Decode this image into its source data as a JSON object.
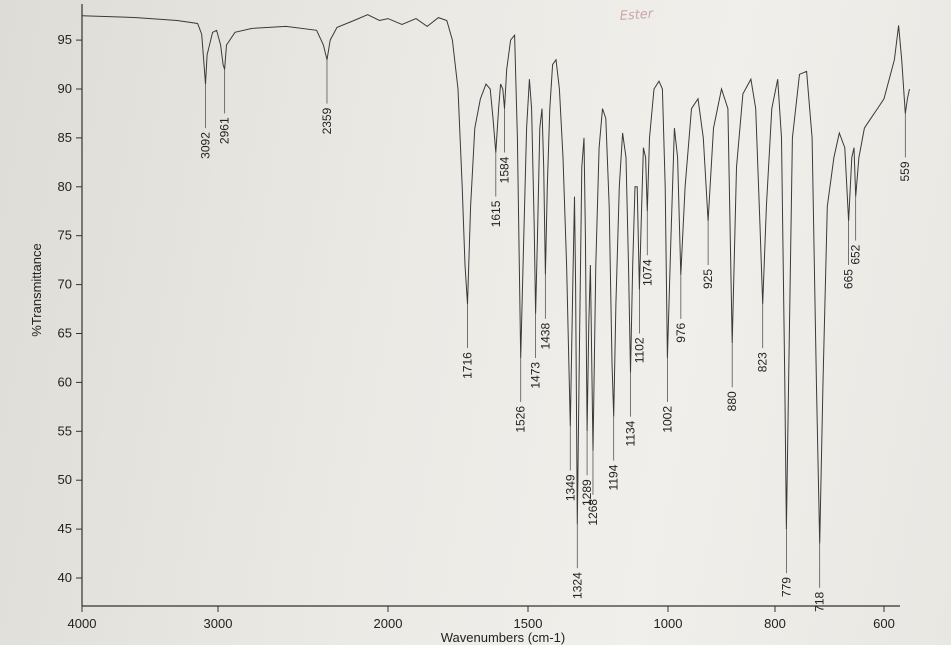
{
  "chart_data": {
    "type": "line",
    "title": "",
    "xlabel": "Wavenumbers (cm-1)",
    "ylabel": "%Transmittance",
    "annotation": "Ester",
    "xlim": [
      4000,
      550
    ],
    "ylim": [
      38,
      98
    ],
    "grid": false,
    "x_ticks": [
      {
        "value": 4000,
        "label": "4000"
      },
      {
        "value": 3000,
        "label": "3000"
      },
      {
        "value": 2000,
        "label": "2000"
      },
      {
        "value": 1500,
        "label": "1500"
      },
      {
        "value": 1000,
        "label": "1000"
      },
      {
        "value": 800,
        "label": "800"
      },
      {
        "value": 600,
        "label": "600"
      }
    ],
    "y_ticks": [
      {
        "value": 95,
        "label": "95"
      },
      {
        "value": 90,
        "label": "90"
      },
      {
        "value": 85,
        "label": "85"
      },
      {
        "value": 80,
        "label": "80"
      },
      {
        "value": 75,
        "label": "75"
      },
      {
        "value": 70,
        "label": "70"
      },
      {
        "value": 65,
        "label": "65"
      },
      {
        "value": 60,
        "label": "60"
      },
      {
        "value": 55,
        "label": "55"
      },
      {
        "value": 50,
        "label": "50"
      },
      {
        "value": 45,
        "label": "45"
      },
      {
        "value": 40,
        "label": "40"
      }
    ],
    "peaks": [
      {
        "x": 3092,
        "y": 90.5,
        "label": "3092"
      },
      {
        "x": 2961,
        "y": 92,
        "label": "2961"
      },
      {
        "x": 2359,
        "y": 93,
        "label": "2359"
      },
      {
        "x": 1716,
        "y": 68,
        "label": "1716"
      },
      {
        "x": 1615,
        "y": 83.5,
        "label": "1615"
      },
      {
        "x": 1584,
        "y": 88,
        "label": "1584"
      },
      {
        "x": 1526,
        "y": 62.5,
        "label": "1526"
      },
      {
        "x": 1473,
        "y": 67,
        "label": "1473"
      },
      {
        "x": 1438,
        "y": 71,
        "label": "1438"
      },
      {
        "x": 1349,
        "y": 55.5,
        "label": "1349"
      },
      {
        "x": 1324,
        "y": 45.5,
        "label": "1324"
      },
      {
        "x": 1289,
        "y": 55,
        "label": "1289"
      },
      {
        "x": 1268,
        "y": 53,
        "label": "1268"
      },
      {
        "x": 1194,
        "y": 56.5,
        "label": "1194"
      },
      {
        "x": 1134,
        "y": 61,
        "label": "1134"
      },
      {
        "x": 1102,
        "y": 69.5,
        "label": "1102"
      },
      {
        "x": 1074,
        "y": 77.5,
        "label": "1074"
      },
      {
        "x": 1002,
        "y": 62.5,
        "label": "1002"
      },
      {
        "x": 976,
        "y": 71,
        "label": "976"
      },
      {
        "x": 925,
        "y": 76.5,
        "label": "925"
      },
      {
        "x": 880,
        "y": 64,
        "label": "880"
      },
      {
        "x": 823,
        "y": 68,
        "label": "823"
      },
      {
        "x": 779,
        "y": 45,
        "label": "779"
      },
      {
        "x": 718,
        "y": 43.5,
        "label": "718"
      },
      {
        "x": 665,
        "y": 76.5,
        "label": "665"
      },
      {
        "x": 652,
        "y": 79,
        "label": "652"
      },
      {
        "x": 559,
        "y": 87.5,
        "label": "559"
      }
    ],
    "spectrum": [
      [
        4000,
        97.5
      ],
      [
        3600,
        97.3
      ],
      [
        3300,
        97.0
      ],
      [
        3150,
        96.7
      ],
      [
        3120,
        95.6
      ],
      [
        3100,
        92.0
      ],
      [
        3092,
        90.5
      ],
      [
        3080,
        93.5
      ],
      [
        3040,
        95.8
      ],
      [
        3010,
        96.0
      ],
      [
        2985,
        94.5
      ],
      [
        2970,
        92.5
      ],
      [
        2961,
        92.0
      ],
      [
        2950,
        94.5
      ],
      [
        2900,
        95.8
      ],
      [
        2800,
        96.2
      ],
      [
        2600,
        96.4
      ],
      [
        2420,
        96.0
      ],
      [
        2380,
        94.5
      ],
      [
        2359,
        93.0
      ],
      [
        2340,
        95.0
      ],
      [
        2300,
        96.3
      ],
      [
        2200,
        97.0
      ],
      [
        2120,
        97.6
      ],
      [
        2050,
        97.0
      ],
      [
        2000,
        97.2
      ],
      [
        1950,
        96.6
      ],
      [
        1900,
        97.2
      ],
      [
        1860,
        96.4
      ],
      [
        1820,
        97.3
      ],
      [
        1790,
        97.0
      ],
      [
        1770,
        95.0
      ],
      [
        1750,
        90.0
      ],
      [
        1735,
        80.0
      ],
      [
        1725,
        72.0
      ],
      [
        1716,
        68.0
      ],
      [
        1705,
        78.0
      ],
      [
        1690,
        86.0
      ],
      [
        1670,
        89.0
      ],
      [
        1650,
        90.5
      ],
      [
        1635,
        90.0
      ],
      [
        1625,
        87.0
      ],
      [
        1615,
        83.5
      ],
      [
        1605,
        88.0
      ],
      [
        1598,
        90.5
      ],
      [
        1590,
        90.0
      ],
      [
        1584,
        88.0
      ],
      [
        1576,
        92.0
      ],
      [
        1562,
        95.0
      ],
      [
        1548,
        95.5
      ],
      [
        1538,
        85.0
      ],
      [
        1526,
        62.5
      ],
      [
        1515,
        75.0
      ],
      [
        1505,
        86.0
      ],
      [
        1495,
        91.0
      ],
      [
        1487,
        88.0
      ],
      [
        1478,
        76.0
      ],
      [
        1473,
        67.0
      ],
      [
        1466,
        75.0
      ],
      [
        1458,
        86.0
      ],
      [
        1450,
        88.0
      ],
      [
        1444,
        82.0
      ],
      [
        1438,
        71.0
      ],
      [
        1431,
        80.0
      ],
      [
        1422,
        88.0
      ],
      [
        1412,
        92.5
      ],
      [
        1400,
        93.0
      ],
      [
        1388,
        90.0
      ],
      [
        1375,
        83.0
      ],
      [
        1362,
        72.0
      ],
      [
        1349,
        55.5
      ],
      [
        1340,
        70.0
      ],
      [
        1334,
        79.0
      ],
      [
        1330,
        70.0
      ],
      [
        1324,
        45.5
      ],
      [
        1316,
        64.0
      ],
      [
        1308,
        82.0
      ],
      [
        1300,
        85.0
      ],
      [
        1295,
        75.0
      ],
      [
        1289,
        55.0
      ],
      [
        1283,
        66.0
      ],
      [
        1277,
        72.0
      ],
      [
        1268,
        53.0
      ],
      [
        1258,
        72.0
      ],
      [
        1246,
        84.0
      ],
      [
        1234,
        88.0
      ],
      [
        1222,
        87.0
      ],
      [
        1210,
        78.0
      ],
      [
        1200,
        62.0
      ],
      [
        1194,
        56.5
      ],
      [
        1186,
        68.0
      ],
      [
        1174,
        80.0
      ],
      [
        1162,
        85.5
      ],
      [
        1150,
        83.0
      ],
      [
        1141,
        72.0
      ],
      [
        1134,
        61.0
      ],
      [
        1126,
        72.0
      ],
      [
        1118,
        80.0
      ],
      [
        1110,
        80.0
      ],
      [
        1102,
        69.5
      ],
      [
        1096,
        76.0
      ],
      [
        1088,
        84.0
      ],
      [
        1080,
        83.0
      ],
      [
        1074,
        77.5
      ],
      [
        1066,
        85.0
      ],
      [
        1050,
        90.0
      ],
      [
        1032,
        90.8
      ],
      [
        1020,
        90.0
      ],
      [
        1010,
        80.0
      ],
      [
        1002,
        62.5
      ],
      [
        995,
        74.0
      ],
      [
        988,
        86.0
      ],
      [
        982,
        83.0
      ],
      [
        976,
        71.0
      ],
      [
        968,
        80.0
      ],
      [
        956,
        88.0
      ],
      [
        944,
        89.0
      ],
      [
        934,
        85.0
      ],
      [
        925,
        76.5
      ],
      [
        915,
        86.0
      ],
      [
        900,
        90.0
      ],
      [
        888,
        88.0
      ],
      [
        880,
        64.0
      ],
      [
        872,
        82.0
      ],
      [
        860,
        89.5
      ],
      [
        845,
        91.0
      ],
      [
        836,
        88.0
      ],
      [
        828,
        76.0
      ],
      [
        823,
        68.0
      ],
      [
        816,
        78.0
      ],
      [
        806,
        88.0
      ],
      [
        795,
        91.0
      ],
      [
        788,
        85.0
      ],
      [
        782,
        60.0
      ],
      [
        779,
        45.0
      ],
      [
        775,
        60.0
      ],
      [
        768,
        85.0
      ],
      [
        755,
        91.5
      ],
      [
        742,
        91.8
      ],
      [
        732,
        85.0
      ],
      [
        724,
        60.0
      ],
      [
        718,
        43.5
      ],
      [
        712,
        60.0
      ],
      [
        704,
        78.0
      ],
      [
        692,
        83.0
      ],
      [
        682,
        85.5
      ],
      [
        672,
        84.0
      ],
      [
        665,
        76.5
      ],
      [
        659,
        83.0
      ],
      [
        655,
        84.0
      ],
      [
        652,
        79.0
      ],
      [
        646,
        83.0
      ],
      [
        636,
        86.0
      ],
      [
        624,
        87.0
      ],
      [
        612,
        88.0
      ],
      [
        600,
        89.0
      ],
      [
        590,
        91.0
      ],
      [
        580,
        93.0
      ],
      [
        572,
        96.5
      ],
      [
        566,
        93.0
      ],
      [
        559,
        87.5
      ],
      [
        555,
        89.0
      ],
      [
        551,
        90.0
      ]
    ]
  }
}
